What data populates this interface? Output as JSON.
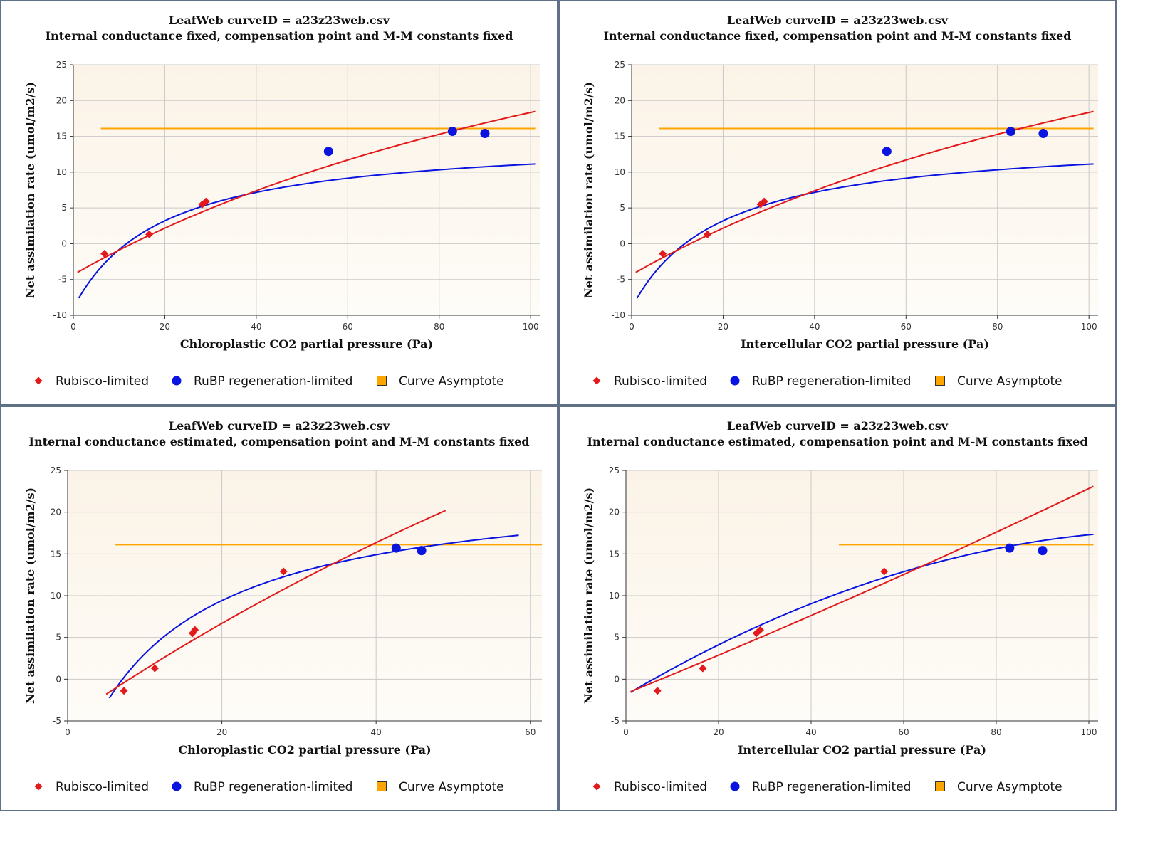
{
  "colors": {
    "rubisco": "#e31a1c",
    "rubp": "#0a14e0",
    "asymptote": "#ffa500",
    "plot_bg_top": "#fbf3e7",
    "plot_bg_bottom": "#fefcf8",
    "grid": "#c9c9c9",
    "panel_border": "#5f7186"
  },
  "legend": {
    "items": [
      {
        "label": "Rubisco-limited",
        "marker": "diamond",
        "color": "#e31a1c"
      },
      {
        "label": "RuBP regeneration-limited",
        "marker": "circle",
        "color": "#0a14e0"
      },
      {
        "label": "Curve Asymptote",
        "marker": "square",
        "color": "#ffa500"
      }
    ]
  },
  "chart_data": [
    {
      "type": "scatter",
      "title": "LeafWeb curveID = a23z23web.csv",
      "subtitle": "Internal conductance fixed, compensation point and M-M constants fixed",
      "xlabel": "Chloroplastic CO2 partial pressure (Pa)",
      "ylabel": "Net assimilation rate (umol/m2/s)",
      "xlim": [
        0,
        102
      ],
      "ylim": [
        -10,
        25
      ],
      "xticks": [
        0,
        20,
        40,
        60,
        80,
        100
      ],
      "yticks": [
        -10,
        -5,
        0,
        5,
        10,
        15,
        20,
        25
      ],
      "grid": true,
      "points_rubisco": [
        [
          6.8,
          -1.4
        ],
        [
          16.6,
          1.3
        ],
        [
          28.2,
          5.5
        ],
        [
          29.0,
          5.9
        ]
      ],
      "points_rubp": [
        [
          55.8,
          12.9
        ],
        [
          82.9,
          15.7
        ],
        [
          90.0,
          15.4
        ]
      ],
      "curve_rubisco": {
        "form": "rubisco",
        "vmax": 56.54,
        "km": 164.1,
        "gamma": 9.68,
        "rd": 1.0,
        "x_start": 0.9,
        "x_end": 101
      },
      "curve_rubp": {
        "form": "rubp",
        "j": 64.0,
        "gamma": 9.68,
        "rd": 1.0,
        "x_start": 1.2,
        "x_end": 101
      },
      "asymptote": {
        "y": 16.1,
        "x_start": 6,
        "x_end": 101
      }
    },
    {
      "type": "scatter",
      "title": "LeafWeb curveID = a23z23web.csv",
      "subtitle": "Internal conductance fixed, compensation point and M-M constants fixed",
      "xlabel": "Intercellular CO2 partial pressure (Pa)",
      "ylabel": "Net assimilation rate (umol/m2/s)",
      "xlim": [
        0,
        102
      ],
      "ylim": [
        -10,
        25
      ],
      "xticks": [
        0,
        20,
        40,
        60,
        80,
        100
      ],
      "yticks": [
        -10,
        -5,
        0,
        5,
        10,
        15,
        20,
        25
      ],
      "grid": true,
      "points_rubisco": [
        [
          6.8,
          -1.4
        ],
        [
          16.6,
          1.3
        ],
        [
          28.2,
          5.5
        ],
        [
          29.0,
          5.9
        ]
      ],
      "points_rubp": [
        [
          55.8,
          12.9
        ],
        [
          82.9,
          15.7
        ],
        [
          90.0,
          15.4
        ]
      ],
      "curve_rubisco": {
        "form": "rubisco",
        "vmax": 56.54,
        "km": 164.1,
        "gamma": 9.68,
        "rd": 1.0,
        "x_start": 0.9,
        "x_end": 101
      },
      "curve_rubp": {
        "form": "rubp",
        "j": 64.0,
        "gamma": 9.68,
        "rd": 1.0,
        "x_start": 1.2,
        "x_end": 101
      },
      "asymptote": {
        "y": 16.1,
        "x_start": 6,
        "x_end": 101
      }
    },
    {
      "type": "scatter",
      "title": "LeafWeb curveID = a23z23web.csv",
      "subtitle": "Internal conductance estimated, compensation point and M-M constants fixed",
      "xlabel": "Chloroplastic CO2 partial pressure (Pa)",
      "ylabel": "Net assimilation rate (umol/m2/s)",
      "xlim": [
        0,
        61.5
      ],
      "ylim": [
        -5,
        25
      ],
      "xticks": [
        0,
        20,
        40,
        60
      ],
      "yticks": [
        -5,
        0,
        5,
        10,
        15,
        20,
        25
      ],
      "grid": true,
      "points_rubisco": [
        [
          7.3,
          -1.4
        ],
        [
          11.3,
          1.3
        ],
        [
          16.2,
          5.5
        ],
        [
          16.5,
          5.9
        ],
        [
          28.0,
          12.9
        ]
      ],
      "points_rubp": [
        [
          42.6,
          15.7
        ],
        [
          45.9,
          15.4
        ]
      ],
      "curve_rubisco": {
        "form": "rubisco",
        "vmax": 124.1,
        "km": 200.8,
        "gamma": 6.33,
        "rd": 1.0,
        "x_start": 5.0,
        "x_end": 49
      },
      "curve_rubp": {
        "form": "rubp",
        "j": 99.5,
        "gamma": 6.33,
        "rd": 1.0,
        "x_start": 5.4,
        "x_end": 58.5
      },
      "asymptote": {
        "y": 16.1,
        "x_start": 6.2,
        "x_end": 61.5
      }
    },
    {
      "type": "scatter",
      "title": "LeafWeb curveID = a23z23web.csv",
      "subtitle": "Internal conductance estimated, compensation point and M-M constants fixed",
      "xlabel": "Intercellular CO2 partial pressure (Pa)",
      "ylabel": "Net assimilation rate (umol/m2/s)",
      "xlim": [
        0,
        102
      ],
      "ylim": [
        -5,
        25
      ],
      "xticks": [
        0,
        20,
        40,
        60,
        80,
        100
      ],
      "yticks": [
        -5,
        0,
        5,
        10,
        15,
        20,
        25
      ],
      "grid": true,
      "points_rubisco": [
        [
          6.8,
          -1.4
        ],
        [
          16.6,
          1.3
        ],
        [
          28.2,
          5.5
        ],
        [
          29.0,
          5.9
        ],
        [
          55.8,
          12.9
        ]
      ],
      "points_rubp": [
        [
          82.9,
          15.7
        ],
        [
          90.0,
          15.4
        ]
      ],
      "curve_rubisco": {
        "form": "linear",
        "a": -1.72,
        "b": 0.2255,
        "c": 0.0002,
        "x_start": 1.0,
        "x_end": 101
      },
      "curve_rubp": {
        "form": "poly",
        "a": -1.9,
        "b": 0.3276,
        "c": -0.001357,
        "x_start": 1.0,
        "x_end": 101
      },
      "asymptote": {
        "y": 16.1,
        "x_start": 46,
        "x_end": 101
      }
    }
  ]
}
